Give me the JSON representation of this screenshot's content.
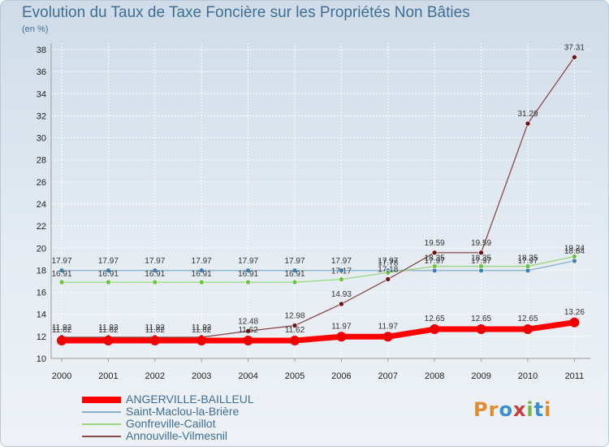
{
  "title": "Evolution du Taux de Taxe Foncière sur les Propriétés Non Bâties",
  "unit_label": "(en %)",
  "logo": {
    "text": "Proxiti",
    "letters": [
      {
        "ch": "P",
        "color": "#e08b2c"
      },
      {
        "ch": "r",
        "color": "#e08b2c"
      },
      {
        "ch": "o",
        "color": "#3c8fd0"
      },
      {
        "ch": "x",
        "color": "#c73c3c"
      },
      {
        "ch": "i",
        "color": "#7ab648"
      },
      {
        "ch": "t",
        "color": "#3c8fd0"
      },
      {
        "ch": "i",
        "color": "#e08b2c"
      }
    ]
  },
  "chart_data": {
    "type": "line",
    "title": "Evolution du Taux de Taxe Foncière sur les Propriétés Non Bâties",
    "ylabel": "(en %)",
    "xlabel": "",
    "x": [
      "2000",
      "2001",
      "2002",
      "2003",
      "2004",
      "2005",
      "2006",
      "2007",
      "2008",
      "2009",
      "2010",
      "2011"
    ],
    "ylim": [
      10,
      38
    ],
    "yticks": [
      10,
      12,
      14,
      16,
      18,
      20,
      22,
      24,
      26,
      28,
      30,
      32,
      34,
      36,
      38
    ],
    "legend_position": "bottom-left",
    "series": [
      {
        "name": "ANGERVILLE-BAILLEUL",
        "color": "#ff0000",
        "marker": "#ee0000",
        "values": [
          11.62,
          11.62,
          11.62,
          11.62,
          11.62,
          11.62,
          11.97,
          11.97,
          12.65,
          12.65,
          12.65,
          13.26
        ],
        "labels": [
          "11.62",
          "11.62",
          "11.62",
          "11.62",
          "11.62",
          "11.62",
          "11.97",
          "11.97",
          "12.65",
          "12.65",
          "12.65",
          "13.26"
        ]
      },
      {
        "name": "Saint-Maclou-la-Brière",
        "color": "#8aaec9",
        "marker": "#3d7fb8",
        "values": [
          17.97,
          17.97,
          17.97,
          17.97,
          17.97,
          17.97,
          17.97,
          17.97,
          17.97,
          17.97,
          17.97,
          18.84
        ],
        "labels": [
          "17.97",
          "17.97",
          "17.97",
          "17.97",
          "17.97",
          "17.97",
          "17.97",
          "17.97",
          "17.97",
          "17.97",
          "17.97",
          "18.84"
        ]
      },
      {
        "name": "Gonfreville-Caillot",
        "color": "#9ad77e",
        "marker": "#6cc245",
        "values": [
          16.91,
          16.91,
          16.91,
          16.91,
          16.91,
          16.91,
          17.17,
          17.78,
          18.35,
          18.35,
          18.35,
          19.24
        ],
        "labels": [
          "16.91",
          "16.91",
          "16.91",
          "16.91",
          "16.91",
          "16.91",
          "17.17",
          "17.78",
          "18.35",
          "18.35",
          "18.35",
          "19.24"
        ]
      },
      {
        "name": "Annouville-Vilmesnil",
        "color": "#8b4a4a",
        "marker": "#6e1515",
        "values": [
          11.92,
          11.92,
          11.92,
          11.92,
          12.48,
          12.98,
          14.93,
          17.18,
          19.59,
          19.59,
          31.29,
          37.31
        ],
        "labels": [
          "11.92",
          "11.92",
          "11.92",
          "11.92",
          "12.48",
          "12.98",
          "14.93",
          "17.18",
          "19.59",
          "19.59",
          "31.29",
          "37.31"
        ]
      }
    ]
  }
}
